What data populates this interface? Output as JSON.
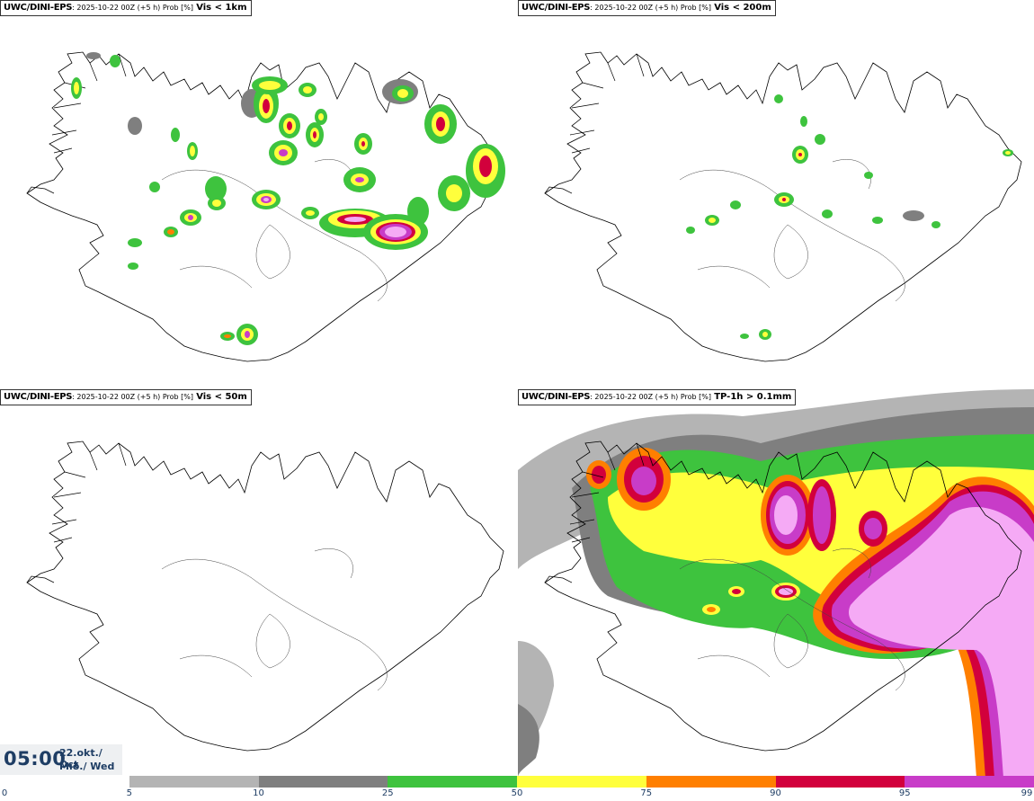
{
  "panels": [
    {
      "source": "UWC/DINI-EPS",
      "meta": ": 2025-10-22 00Z (+5 h) Prob [%]",
      "threshold": "Vis < 1km"
    },
    {
      "source": "UWC/DINI-EPS",
      "meta": ": 2025-10-22 00Z (+5 h) Prob [%]",
      "threshold": "Vis < 200m"
    },
    {
      "source": "UWC/DINI-EPS",
      "meta": ": 2025-10-22 00Z (+5 h) Prob [%]",
      "threshold": "Vis < 50m"
    },
    {
      "source": "UWC/DINI-EPS",
      "meta": ": 2025-10-22 00Z (+5 h) Prob [%]",
      "threshold": "TP-1h > 0.1mm"
    }
  ],
  "time": {
    "clock": "05:00",
    "date_line1": "22.okt./ Oct",
    "date_line2": "Mið./ Wed"
  },
  "legend": {
    "ticks": [
      "0",
      "5",
      "10",
      "25",
      "50",
      "75",
      "90",
      "95",
      "99"
    ],
    "colors": [
      "#ffffff",
      "#b4b4b4",
      "#7f7f7f",
      "#3ec33e",
      "#ffff3c",
      "#ff7f00",
      "#d2003c",
      "#c83cc8",
      "#f5aaf5"
    ]
  },
  "layers": {
    "white": "#ffffff",
    "light_grey": "#b4b4b4",
    "grey": "#7f7f7f",
    "green": "#3ec33e",
    "yellow": "#ffff3c",
    "orange": "#ff7f00",
    "red": "#d2003c",
    "purple": "#c83cc8",
    "pink": "#f5aaf5"
  }
}
